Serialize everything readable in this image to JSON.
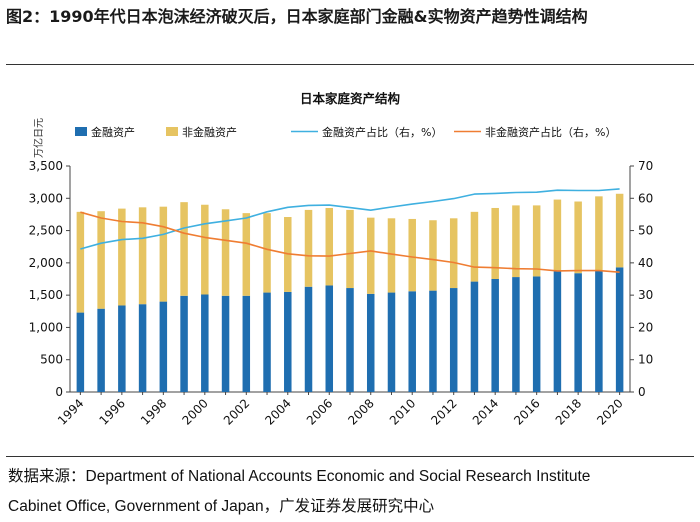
{
  "figure": {
    "title": "图2：1990年代日本泡沫经济破灭后，日本家庭部门金融&实物资产趋势性调结构",
    "source_line1": "数据来源：Department of National Accounts Economic and Social Research Institute",
    "source_line2": "Cabinet Office, Government of Japan，广发证券发展研究中心"
  },
  "colors": {
    "financial_bar": "#1f6eb0",
    "nonfinancial_bar": "#e6c462",
    "financial_share_line": "#3fb0e0",
    "nonfinancial_share_line": "#ef7d32",
    "axis": "#444444"
  },
  "chart_data": {
    "type": "bar+line",
    "title": "日本家庭资产结构",
    "y_left_label": "万亿日元",
    "y_left_range": [
      0,
      3500
    ],
    "y_left_ticks": [
      "0",
      "500",
      "1,000",
      "1,500",
      "2,000",
      "2,500",
      "3,000",
      "3,500"
    ],
    "y_right_range": [
      0,
      70
    ],
    "y_right_ticks": [
      "0",
      "10",
      "20",
      "30",
      "40",
      "50",
      "60",
      "70"
    ],
    "x_tick_labels": [
      "1994",
      "1996",
      "1998",
      "2000",
      "2002",
      "2004",
      "2006",
      "2008",
      "2010",
      "2012",
      "2014",
      "2016",
      "2018",
      "2020"
    ],
    "categories": [
      "1994",
      "1995",
      "1996",
      "1997",
      "1998",
      "1999",
      "2000",
      "2001",
      "2002",
      "2003",
      "2004",
      "2005",
      "2006",
      "2007",
      "2008",
      "2009",
      "2010",
      "2011",
      "2012",
      "2013",
      "2014",
      "2015",
      "2016",
      "2017",
      "2018",
      "2019",
      "2020"
    ],
    "legend": [
      "金融资产",
      "非金融资产",
      "金融资产占比（右，%）",
      "非金融资产占比（右，%）"
    ],
    "series": [
      {
        "name": "金融资产",
        "kind": "stacked-bar",
        "axis": "left",
        "values": [
          1230,
          1290,
          1340,
          1360,
          1400,
          1490,
          1510,
          1490,
          1490,
          1540,
          1550,
          1630,
          1650,
          1610,
          1520,
          1540,
          1560,
          1570,
          1610,
          1710,
          1750,
          1780,
          1790,
          1870,
          1840,
          1880,
          1930
        ]
      },
      {
        "name": "非金融资产",
        "kind": "stacked-bar",
        "axis": "left",
        "values": [
          1560,
          1510,
          1500,
          1500,
          1470,
          1450,
          1390,
          1340,
          1280,
          1230,
          1160,
          1190,
          1200,
          1210,
          1180,
          1150,
          1120,
          1090,
          1080,
          1080,
          1100,
          1110,
          1100,
          1110,
          1110,
          1150,
          1140
        ]
      },
      {
        "name": "金融资产占比（右，%）",
        "kind": "line",
        "axis": "right",
        "values": [
          44.3,
          46.1,
          47.2,
          47.6,
          48.8,
          50.8,
          52.1,
          53.0,
          53.9,
          55.8,
          57.2,
          57.8,
          57.9,
          57.1,
          56.3,
          57.3,
          58.2,
          59.0,
          59.9,
          61.3,
          61.5,
          61.8,
          61.9,
          62.5,
          62.4,
          62.4,
          62.9
        ]
      },
      {
        "name": "非金融资产占比（右，%）",
        "kind": "line",
        "axis": "right",
        "values": [
          55.7,
          53.9,
          52.8,
          52.4,
          51.2,
          49.2,
          47.9,
          47.0,
          46.1,
          44.2,
          42.8,
          42.2,
          42.1,
          42.9,
          43.7,
          42.7,
          41.8,
          41.0,
          40.1,
          38.7,
          38.5,
          38.2,
          38.1,
          37.5,
          37.6,
          37.6,
          37.1
        ]
      }
    ]
  }
}
